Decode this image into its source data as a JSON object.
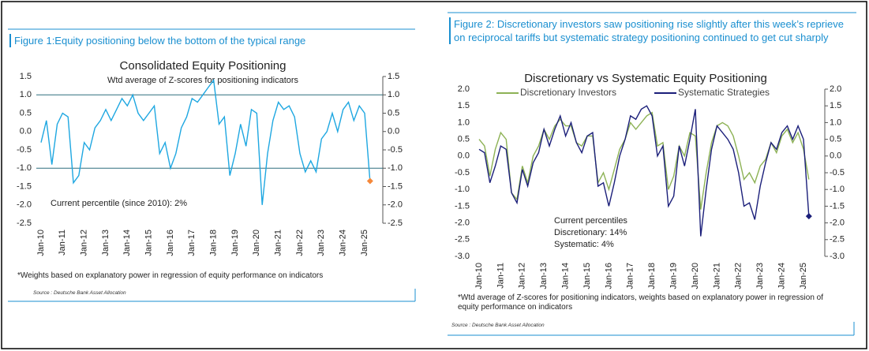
{
  "chart_data": [
    {
      "type": "line",
      "heading": "Figure 1:Equity positioning below the bottom of the typical range",
      "title": "Consolidated Equity Positioning",
      "subtitle": "Wtd average of Z-scores for positioning indicators",
      "annotations": [
        "Current percentile (since 2010): 2%"
      ],
      "note": "*Weights based on explanatory power in regression of equity performance on indicators",
      "source": "Source : Deutsche Bank Asset Allocation",
      "categories": [
        "Jan-10",
        null,
        null,
        null,
        "Jan-11",
        null,
        null,
        null,
        "Jan-12",
        null,
        null,
        null,
        "Jan-13",
        null,
        null,
        null,
        "Jan-14",
        null,
        null,
        null,
        "Jan-15",
        null,
        null,
        null,
        "Jan-16",
        null,
        null,
        null,
        "Jan-17",
        null,
        null,
        null,
        "Jan-18",
        null,
        null,
        null,
        "Jan-19",
        null,
        null,
        null,
        "Jan-20",
        null,
        null,
        null,
        "Jan-21",
        null,
        null,
        null,
        "Jan-22",
        null,
        null,
        null,
        "Jan-23",
        null,
        null,
        null,
        "Jan-24",
        null,
        null,
        null,
        "Jan-25",
        null
      ],
      "values": [
        -0.3,
        0.3,
        -0.9,
        0.2,
        0.5,
        0.4,
        -1.4,
        -1.2,
        -0.3,
        -0.5,
        0.1,
        0.3,
        0.6,
        0.3,
        0.6,
        0.9,
        0.7,
        1.0,
        0.5,
        0.3,
        0.5,
        0.7,
        -0.6,
        -0.3,
        -1.0,
        -0.6,
        0.1,
        0.4,
        0.9,
        0.8,
        1.0,
        1.2,
        1.4,
        0.2,
        0.4,
        -1.2,
        -0.6,
        0.2,
        -0.4,
        0.6,
        0.5,
        -2.0,
        -0.6,
        0.3,
        0.8,
        0.6,
        0.7,
        0.4,
        -0.6,
        -1.1,
        -0.8,
        -1.1,
        -0.2,
        0.0,
        0.5,
        0.0,
        0.6,
        0.8,
        0.3,
        0.7,
        0.5,
        -1.35
      ],
      "color": "#1ea7e1",
      "end_marker_color": "#f5883a",
      "hlines": [
        1,
        -1
      ],
      "hline_color": "#2e6f7e",
      "ylim": [
        -2.5,
        1.5
      ],
      "yticks": [
        1.5,
        {
          "value": 1,
          "label": "1.0"
        },
        0.5,
        {
          "value": 0,
          "label": "0.0"
        },
        -0.5,
        {
          "value": -1,
          "label": "-1.0"
        },
        -1.5,
        {
          "value": -2,
          "label": "-2.0"
        },
        -2.5
      ],
      "y2lim": [
        -2.5,
        1.5
      ],
      "y2ticks": [
        1.5,
        {
          "value": 1,
          "label": "1.0"
        },
        0.5,
        {
          "value": 0,
          "label": "0.0"
        },
        -0.5,
        {
          "value": -1,
          "label": "-1.0"
        },
        -1.5,
        {
          "value": -2,
          "label": "-2.0"
        },
        -2.5
      ]
    },
    {
      "type": "line",
      "heading": "Figure 2: Discretionary investors saw positioning rise slightly after this week’s reprieve on reciprocal tariffs but systematic strategy positioning continued to get cut sharply",
      "title": "Discretionary  vs Systematic Equity Positioning",
      "annotations": [
        "Current percentiles",
        "Discretionary: 14%",
        "Systematic: 4%"
      ],
      "note": "*Wtd average of Z-scores for positioning indicators, weights based on explanatory power in regression of equity performance on indicators",
      "source": "Source : Deutsche Bank Asset Allocation",
      "categories": [
        "Jan-10",
        null,
        null,
        null,
        "Jan-11",
        null,
        null,
        null,
        "Jan-12",
        null,
        null,
        null,
        "Jan-13",
        null,
        null,
        null,
        "Jan-14",
        null,
        null,
        null,
        "Jan-15",
        null,
        null,
        null,
        "Jan-16",
        null,
        null,
        null,
        "Jan-17",
        null,
        null,
        null,
        "Jan-18",
        null,
        null,
        null,
        "Jan-19",
        null,
        null,
        null,
        "Jan-20",
        null,
        null,
        null,
        "Jan-21",
        null,
        null,
        null,
        "Jan-22",
        null,
        null,
        null,
        "Jan-23",
        null,
        null,
        null,
        "Jan-24",
        null,
        null,
        null,
        "Jan-25",
        null
      ],
      "series": [
        {
          "name": "Discretionary Investors",
          "color": "#8db255",
          "values": [
            0.5,
            0.3,
            -0.6,
            0.2,
            0.7,
            0.5,
            -1.1,
            -1.3,
            -0.3,
            -0.8,
            0.0,
            0.3,
            0.8,
            0.5,
            0.9,
            1.1,
            0.9,
            0.9,
            0.4,
            0.3,
            0.6,
            0.6,
            -0.8,
            -0.5,
            -1.0,
            -0.4,
            0.2,
            0.5,
            1.0,
            0.8,
            1.0,
            1.2,
            1.3,
            0.3,
            0.4,
            -1.0,
            -0.6,
            0.3,
            0.0,
            0.7,
            0.6,
            -1.6,
            -0.5,
            0.4,
            0.9,
            1.0,
            0.9,
            0.6,
            0.0,
            -0.7,
            -0.5,
            -0.8,
            -0.3,
            -0.1,
            0.4,
            0.1,
            0.6,
            0.8,
            0.4,
            0.7,
            0.2,
            -0.7
          ]
        },
        {
          "name": "Systematic Strategies",
          "color": "#1b1f7a",
          "end_marker_color": "#1b1f7a",
          "values": [
            0.2,
            0.1,
            -0.8,
            -0.3,
            0.3,
            0.2,
            -1.1,
            -1.4,
            -0.4,
            -0.9,
            -0.2,
            0.1,
            0.8,
            0.3,
            0.8,
            1.2,
            0.6,
            1.0,
            0.4,
            0.1,
            0.6,
            0.7,
            -0.9,
            -0.8,
            -1.5,
            -0.8,
            0.0,
            0.5,
            1.2,
            1.1,
            1.4,
            1.5,
            1.2,
            0.0,
            0.3,
            -1.5,
            -1.2,
            0.3,
            -0.3,
            0.5,
            1.4,
            -2.4,
            -1.0,
            0.2,
            0.9,
            0.7,
            0.5,
            0.2,
            -0.5,
            -1.5,
            -1.4,
            -1.9,
            -0.9,
            -0.2,
            0.4,
            0.2,
            0.7,
            0.9,
            0.5,
            0.9,
            0.5,
            -1.8
          ]
        }
      ],
      "ylim": [
        -3,
        2
      ],
      "yticks": [
        {
          "value": 2,
          "label": "2.0"
        },
        1.5,
        {
          "value": 1,
          "label": "1.0"
        },
        0.5,
        {
          "value": 0,
          "label": "0.0"
        },
        -0.5,
        {
          "value": -1,
          "label": "-1.0"
        },
        -1.5,
        {
          "value": -2,
          "label": "-2.0"
        },
        -2.5,
        {
          "value": -3,
          "label": "-3.0"
        }
      ],
      "y2lim": [
        -3,
        2
      ],
      "y2ticks": [
        {
          "value": 2,
          "label": "2.0"
        },
        1.5,
        {
          "value": 1,
          "label": "1.0"
        },
        0.5,
        {
          "value": 0,
          "label": "0.0"
        },
        -0.5,
        {
          "value": -1,
          "label": "-1.0"
        },
        -1.5,
        {
          "value": -2,
          "label": "-2.0"
        },
        -2.5,
        {
          "value": -3,
          "label": "-3.0"
        }
      ]
    }
  ]
}
